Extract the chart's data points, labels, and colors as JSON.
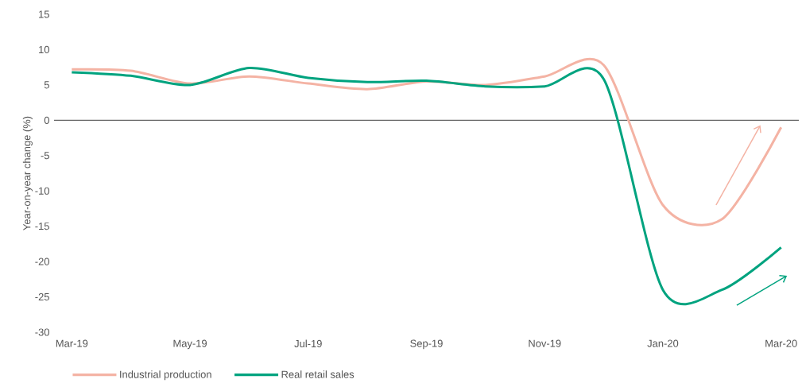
{
  "chart_data": {
    "type": "line",
    "ylabel": "Year-on-year change (%)",
    "categories": [
      "Mar-19",
      null,
      "May-19",
      null,
      "Jul-19",
      null,
      "Sep-19",
      null,
      "Nov-19",
      null,
      "Jan-20",
      null,
      "Mar-20"
    ],
    "series": [
      {
        "name": "Industrial production",
        "color": "#f4b3a4",
        "values": [
          7.2,
          7.0,
          5.2,
          6.2,
          5.2,
          4.4,
          5.5,
          5.0,
          6.2,
          7.8,
          -12,
          -14,
          -1
        ]
      },
      {
        "name": "Real retail sales",
        "color": "#00a37f",
        "values": [
          6.8,
          6.3,
          5.0,
          7.4,
          6.0,
          5.4,
          5.6,
          4.8,
          4.8,
          5.8,
          -24,
          -24,
          -18
        ]
      }
    ],
    "ylim": [
      -30,
      15
    ],
    "yticks": [
      -30,
      -25,
      -20,
      -15,
      -10,
      -5,
      0,
      5,
      10,
      15
    ],
    "ref_lines": [
      {
        "axis": "y",
        "value": 0,
        "color": "#666666"
      }
    ],
    "legend": "bottom left"
  }
}
